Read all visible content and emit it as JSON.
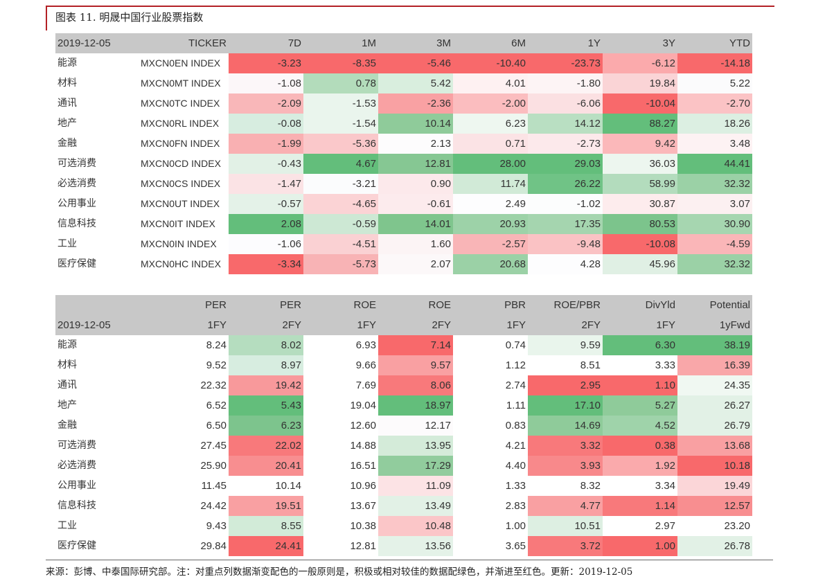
{
  "title": "图表 11. 明晟中国行业股票指数",
  "table1": {
    "date": "2019-12-05",
    "headers": [
      "TICKER",
      "7D",
      "1M",
      "3M",
      "6M",
      "1Y",
      "3Y",
      "YTD"
    ],
    "rows": [
      {
        "sector": "能源",
        "ticker": "MXCN0EN INDEX",
        "values": [
          "-3.23",
          "-8.35",
          "-5.46",
          "-10.40",
          "-23.73",
          "-6.12",
          "-14.18"
        ],
        "colors": [
          "#f8696b",
          "#f8696b",
          "#f8696b",
          "#f8696b",
          "#f8696b",
          "#fbaaac",
          "#f8696b"
        ]
      },
      {
        "sector": "材料",
        "ticker": "MXCN0MT INDEX",
        "values": [
          "-1.08",
          "0.78",
          "5.42",
          "4.01",
          "-1.80",
          "19.84",
          "5.22"
        ],
        "colors": [
          "#fcf7f9",
          "#b3dcbb",
          "#d9eede",
          "#fef1f2",
          "#fdf4f5",
          "#fad4d6",
          "#fbfbfc"
        ]
      },
      {
        "sector": "通讯",
        "ticker": "MXCN0TC INDEX",
        "values": [
          "-2.09",
          "-1.53",
          "-2.36",
          "-2.00",
          "-6.06",
          "-10.04",
          "-2.70"
        ],
        "colors": [
          "#f9b7b9",
          "#eaf5ed",
          "#f9a1a3",
          "#fbbdbf",
          "#fbe0e2",
          "#f8696b",
          "#fbc3c5"
        ]
      },
      {
        "sector": "地产",
        "ticker": "MXCN0RL INDEX",
        "values": [
          "-0.08",
          "-1.54",
          "10.14",
          "6.23",
          "14.12",
          "88.27",
          "18.26"
        ],
        "colors": [
          "#d7ede0",
          "#eaf5ed",
          "#8fcb9a",
          "#eef7f0",
          "#b9dfc2",
          "#63be7b",
          "#dcefe2"
        ]
      },
      {
        "sector": "金融",
        "ticker": "MXCN0FN INDEX",
        "values": [
          "-1.99",
          "-5.36",
          "2.13",
          "0.71",
          "-2.73",
          "9.42",
          "3.48"
        ],
        "colors": [
          "#f9b0b2",
          "#fac8ca",
          "#fdfcfd",
          "#fbe3e5",
          "#fce9eb",
          "#fbb8ba",
          "#fdf2f3"
        ]
      },
      {
        "sector": "可选消费",
        "ticker": "MXCN0CD INDEX",
        "values": [
          "-0.43",
          "4.67",
          "12.81",
          "28.00",
          "29.03",
          "36.03",
          "44.41"
        ],
        "colors": [
          "#e2f1e6",
          "#63be7b",
          "#86c793",
          "#63be7b",
          "#63be7b",
          "#edf6ef",
          "#63be7b"
        ]
      },
      {
        "sector": "必选消费",
        "ticker": "MXCN0CS INDEX",
        "values": [
          "-1.47",
          "-3.21",
          "0.90",
          "11.74",
          "26.22",
          "58.99",
          "32.32"
        ],
        "colors": [
          "#fbe3e5",
          "#fbfcfd",
          "#fce9eb",
          "#d1ead7",
          "#70c386",
          "#b3dcbd",
          "#9bd1a6"
        ]
      },
      {
        "sector": "公用事业",
        "ticker": "MXCN0UT INDEX",
        "values": [
          "-0.57",
          "-4.65",
          "-0.61",
          "2.49",
          "-1.02",
          "30.87",
          "3.07"
        ],
        "colors": [
          "#e4f2e8",
          "#fbd3d5",
          "#fcebed",
          "#fdfdfe",
          "#fcfdfd",
          "#fdeced",
          "#fcf0f1"
        ]
      },
      {
        "sector": "信息科技",
        "ticker": "MXCN0IT INDEX",
        "values": [
          "2.08",
          "-0.59",
          "14.01",
          "20.93",
          "17.35",
          "80.53",
          "30.90"
        ],
        "colors": [
          "#63be7b",
          "#cde8d4",
          "#7fc58d",
          "#9dd2a8",
          "#a5d5af",
          "#7cc48c",
          "#a6d6b0"
        ]
      },
      {
        "sector": "工业",
        "ticker": "MXCN0IN INDEX",
        "values": [
          "-1.06",
          "-4.51",
          "1.60",
          "-2.57",
          "-9.48",
          "-10.08",
          "-4.59"
        ],
        "colors": [
          "#fcfcfe",
          "#fad1d3",
          "#fcf4f5",
          "#f9b5b7",
          "#fac2c4",
          "#f8696b",
          "#fab6b8"
        ]
      },
      {
        "sector": "医疗保健",
        "ticker": "MXCN0HC INDEX",
        "values": [
          "-3.34",
          "-5.73",
          "2.07",
          "20.68",
          "4.28",
          "45.96",
          "32.32"
        ],
        "colors": [
          "#f8696b",
          "#f8b3b5",
          "#fcf8f9",
          "#9bd1a6",
          "#fdfdfe",
          "#e0f0e4",
          "#9bd1a6"
        ]
      }
    ]
  },
  "table2": {
    "date": "2019-12-05",
    "headers_top": [
      "PER",
      "PER",
      "ROE",
      "ROE",
      "PBR",
      "ROE/PBR",
      "DivYld",
      "Potential"
    ],
    "headers_sub": [
      "1FY",
      "2FY",
      "1FY",
      "2FY",
      "1FY",
      "2FY",
      "1FY",
      "1yFwd"
    ],
    "rows": [
      {
        "sector": "能源",
        "values": [
          "8.24",
          "8.02",
          "6.93",
          "7.14",
          "0.74",
          "9.59",
          "6.30",
          "38.19"
        ],
        "colors": [
          "#ffffff",
          "#b5ddbf",
          "#ffffff",
          "#f8696b",
          "#ffffff",
          "#e9f5ec",
          "#63be7b",
          "#63be7b"
        ]
      },
      {
        "sector": "材料",
        "values": [
          "9.52",
          "8.97",
          "9.66",
          "9.57",
          "1.12",
          "8.51",
          "3.33",
          "16.39"
        ],
        "colors": [
          "#ffffff",
          "#d7ede0",
          "#ffffff",
          "#f9a0a2",
          "#ffffff",
          "#ffffff",
          "#ffffff",
          "#f9a7a9"
        ]
      },
      {
        "sector": "通讯",
        "values": [
          "22.32",
          "19.42",
          "7.69",
          "8.06",
          "2.74",
          "2.95",
          "1.10",
          "24.35"
        ],
        "colors": [
          "#ffffff",
          "#f8999b",
          "#ffffff",
          "#f8797b",
          "#ffffff",
          "#f8696b",
          "#f8696b",
          "#f0f8f2"
        ]
      },
      {
        "sector": "地产",
        "values": [
          "6.52",
          "5.43",
          "19.04",
          "18.97",
          "1.11",
          "17.10",
          "5.27",
          "26.27"
        ],
        "colors": [
          "#ffffff",
          "#63be7b",
          "#ffffff",
          "#63be7b",
          "#ffffff",
          "#63be7b",
          "#8fcb9a",
          "#e2f1e6"
        ]
      },
      {
        "sector": "金融",
        "values": [
          "6.50",
          "6.23",
          "12.60",
          "12.17",
          "0.83",
          "14.69",
          "4.52",
          "26.79"
        ],
        "colors": [
          "#ffffff",
          "#7dc48d",
          "#ffffff",
          "#fdfbfc",
          "#ffffff",
          "#8fcb9a",
          "#9fd3aa",
          "#e2f1e6"
        ]
      },
      {
        "sector": "可选消费",
        "values": [
          "27.45",
          "22.02",
          "14.88",
          "13.95",
          "4.21",
          "3.32",
          "0.38",
          "13.68"
        ],
        "colors": [
          "#ffffff",
          "#f8797b",
          "#ffffff",
          "#d4ebd9",
          "#ffffff",
          "#f8797b",
          "#f8696b",
          "#f9a0a2"
        ]
      },
      {
        "sector": "必选消费",
        "values": [
          "25.90",
          "20.41",
          "16.51",
          "17.29",
          "4.40",
          "3.93",
          "1.92",
          "10.18"
        ],
        "colors": [
          "#ffffff",
          "#f88e90",
          "#ffffff",
          "#91cc9d",
          "#ffffff",
          "#f8898b",
          "#faaaac",
          "#f8696b"
        ]
      },
      {
        "sector": "公用事业",
        "values": [
          "11.45",
          "10.14",
          "10.96",
          "11.09",
          "1.33",
          "8.32",
          "3.34",
          "19.49"
        ],
        "colors": [
          "#ffffff",
          "#ffffff",
          "#ffffff",
          "#fce3e5",
          "#ffffff",
          "#ffffff",
          "#ffffff",
          "#fbd6d8"
        ]
      },
      {
        "sector": "信息科技",
        "values": [
          "24.42",
          "19.51",
          "13.67",
          "13.49",
          "2.83",
          "4.77",
          "1.14",
          "12.57"
        ],
        "colors": [
          "#ffffff",
          "#f9a0a2",
          "#ffffff",
          "#e2f1e6",
          "#ffffff",
          "#f9a0a2",
          "#f8797b",
          "#f88e90"
        ]
      },
      {
        "sector": "工业",
        "values": [
          "9.43",
          "8.55",
          "10.38",
          "10.48",
          "1.00",
          "10.51",
          "2.97",
          "23.20"
        ],
        "colors": [
          "#ffffff",
          "#d2ebd8",
          "#ffffff",
          "#fbc6c8",
          "#ffffff",
          "#ddefe2",
          "#ffffff",
          "#ffffff"
        ]
      },
      {
        "sector": "医疗保健",
        "values": [
          "29.84",
          "24.41",
          "12.81",
          "13.56",
          "3.65",
          "3.72",
          "1.00",
          "26.78"
        ],
        "colors": [
          "#ffffff",
          "#f8696b",
          "#ffffff",
          "#e4f2e8",
          "#ffffff",
          "#f8797b",
          "#f8696b",
          "#e2f1e6"
        ]
      }
    ]
  },
  "footer": "来源：彭博、中泰国际研究部。注：对重点列数据渐变配色的一般原则是，积极或相对较佳的数据配绿色，并渐进至红色。更新：2019-12-05"
}
